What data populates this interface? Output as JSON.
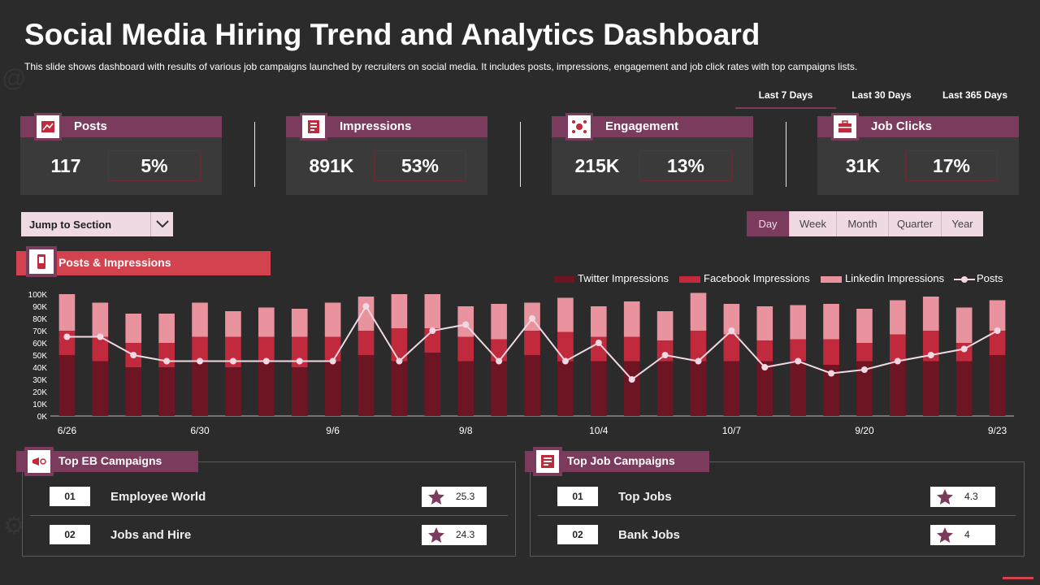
{
  "header": {
    "title": "Social Media Hiring Trend and Analytics Dashboard",
    "subtitle": "This slide shows dashboard with results of various job campaigns launched by recruiters on social media. It includes posts, impressions, engagement and job click rates with top campaigns lists."
  },
  "range_tabs": [
    {
      "label": "Last 7 Days",
      "active": true
    },
    {
      "label": "Last 30 Days",
      "active": false
    },
    {
      "label": "Last 365 Days",
      "active": false
    }
  ],
  "kpis": [
    {
      "label": "Posts",
      "value": "117",
      "percent": "5%",
      "icon": "posts-icon"
    },
    {
      "label": "Impressions",
      "value": "891K",
      "percent": "53%",
      "icon": "impressions-icon"
    },
    {
      "label": "Engagement",
      "value": "215K",
      "percent": "13%",
      "icon": "engagement-icon"
    },
    {
      "label": "Job Clicks",
      "value": "31K",
      "percent": "17%",
      "icon": "briefcase-icon"
    }
  ],
  "jump": {
    "label": "Jump to Section"
  },
  "period_tabs": [
    {
      "label": "Day",
      "active": true
    },
    {
      "label": "Week",
      "active": false
    },
    {
      "label": "Month",
      "active": false
    },
    {
      "label": "Quarter",
      "active": false
    },
    {
      "label": "Year",
      "active": false
    }
  ],
  "posts_impressions": {
    "title": "Posts & Impressions"
  },
  "colors": {
    "twitter": "#6e1524",
    "facebook": "#c12a3d",
    "linkedin": "#e8939d",
    "posts": "#f2d8e3",
    "accent": "#7a3b5d",
    "section_red": "#d2424f"
  },
  "chart_data": {
    "type": "bar",
    "stacked": true,
    "title": "Posts & Impressions",
    "x_tick_labels": [
      "6/26",
      "6/30",
      "9/6",
      "9/8",
      "10/4",
      "10/7",
      "9/20",
      "9/23"
    ],
    "x_tick_indices": [
      0,
      4,
      8,
      12,
      16,
      20,
      24,
      28
    ],
    "categories_count": 29,
    "ylim": [
      0,
      100000
    ],
    "y_tick_labels": [
      "0K",
      "10K",
      "20K",
      "30K",
      "40K",
      "50K",
      "60K",
      "70K",
      "80K",
      "90K",
      "100K"
    ],
    "legend": [
      "Twitter Impressions",
      "Facebook Impressions",
      "Linkedin Impressions",
      "Posts"
    ],
    "series": [
      {
        "name": "Twitter Impressions",
        "values": [
          50000,
          45000,
          40000,
          40000,
          45000,
          40000,
          45000,
          40000,
          45000,
          50000,
          45000,
          52000,
          45000,
          45000,
          50000,
          45000,
          45000,
          45000,
          45000,
          45000,
          45000,
          45000,
          45000,
          42000,
          45000,
          45000,
          45000,
          45000,
          50000
        ]
      },
      {
        "name": "Facebook Impressions",
        "values": [
          20000,
          20000,
          20000,
          20000,
          20000,
          25000,
          20000,
          25000,
          20000,
          20000,
          27000,
          20000,
          20000,
          18000,
          20000,
          24000,
          20000,
          20000,
          17000,
          25000,
          22000,
          17000,
          18000,
          21000,
          15000,
          22000,
          25000,
          15000,
          20000
        ]
      },
      {
        "name": "Linkedin Impressions",
        "values": [
          30000,
          28000,
          24000,
          24000,
          28000,
          21000,
          24000,
          23000,
          28000,
          28000,
          28000,
          28000,
          25000,
          29000,
          23000,
          28000,
          25000,
          29000,
          24000,
          31000,
          25000,
          28000,
          28000,
          29000,
          28000,
          28000,
          28000,
          29000,
          25000
        ]
      },
      {
        "name": "Posts",
        "type": "line",
        "values": [
          65000,
          65000,
          50000,
          45000,
          45000,
          45000,
          45000,
          45000,
          45000,
          90000,
          45000,
          70000,
          75000,
          45000,
          80000,
          45000,
          60000,
          30000,
          50000,
          45000,
          70000,
          40000,
          45000,
          35000,
          38000,
          45000,
          50000,
          55000,
          70000
        ]
      }
    ]
  },
  "top_eb": {
    "title": "Top EB Campaigns",
    "items": [
      {
        "rank": "01",
        "name": "Employee World",
        "score": "25.3"
      },
      {
        "rank": "02",
        "name": "Jobs and Hire",
        "score": "24.3"
      }
    ]
  },
  "top_job": {
    "title": "Top Job Campaigns",
    "items": [
      {
        "rank": "01",
        "name": "Top Jobs",
        "score": "4.3"
      },
      {
        "rank": "02",
        "name": "Bank Jobs",
        "score": "4"
      }
    ]
  }
}
